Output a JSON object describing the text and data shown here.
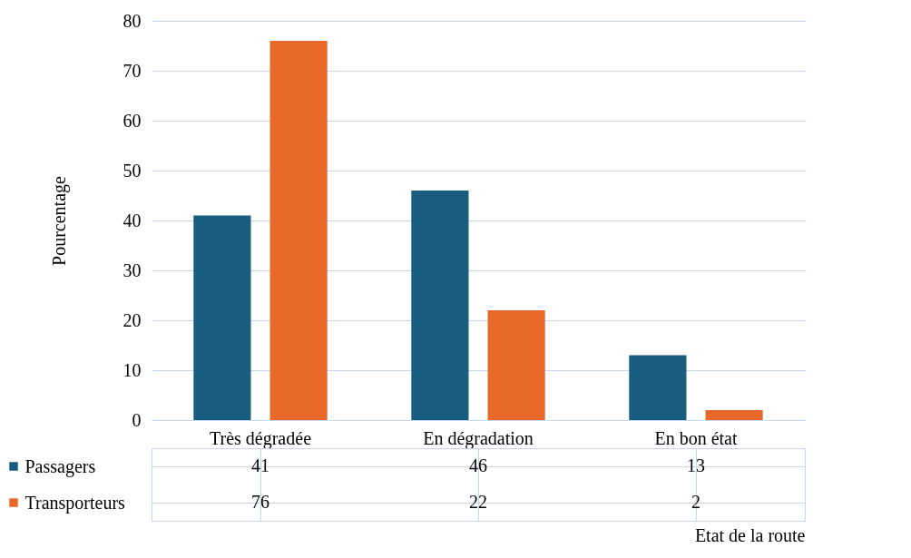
{
  "chart_data": {
    "type": "bar",
    "xlabel": "Etat de la route",
    "ylabel": "Pourcentage",
    "categories": [
      "Très dégradée",
      "En dégradation",
      "En bon état"
    ],
    "series": [
      {
        "name": "Passagers",
        "color": "#185d7f",
        "values": [
          41,
          46,
          13
        ]
      },
      {
        "name": "Transporteurs",
        "color": "#e8682a",
        "values": [
          76,
          22,
          2
        ]
      }
    ],
    "ylim": [
      0,
      80
    ],
    "yticks": [
      0,
      10,
      20,
      30,
      40,
      50,
      60,
      70,
      80
    ],
    "grid": "y",
    "data_labels": true,
    "legend": "bottom"
  }
}
